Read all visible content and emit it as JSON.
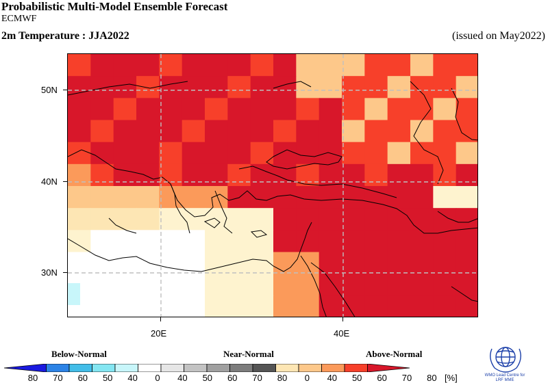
{
  "header": {
    "title": "Probabilistic Multi-Model Ensemble Forecast",
    "center": "ECMWF",
    "variable": "2m Temperature : JJA2022",
    "issued": "(issued on May2022)"
  },
  "map": {
    "lon_range": [
      10,
      55
    ],
    "lat_range": [
      25,
      55
    ],
    "lat_ticks": [
      {
        "value": 50,
        "label": "50N"
      },
      {
        "value": 40,
        "label": "40N"
      },
      {
        "value": 30,
        "label": "30N"
      }
    ],
    "lon_ticks": [
      {
        "value": 20,
        "label": "20E"
      },
      {
        "value": 40,
        "label": "40E"
      }
    ],
    "grid": true
  },
  "legend": {
    "categories": [
      "Below-Normal",
      "Near-Normal",
      "Above-Normal"
    ],
    "below_labels": [
      "80",
      "70",
      "60",
      "50",
      "40",
      "0"
    ],
    "near_labels": [
      "40",
      "50",
      "60",
      "70",
      "80",
      "0"
    ],
    "above_labels": [
      "40",
      "50",
      "60",
      "70",
      "80"
    ],
    "unit": "[%]",
    "below_colors": [
      "#1a1ae0",
      "#2c83e6",
      "#42bde8",
      "#84e6f2",
      "#c8f6fa"
    ],
    "near_colors": [
      "#e6e6e6",
      "#c3c3c3",
      "#a0a0a0",
      "#7d7d7d",
      "#555555"
    ],
    "above_colors": [
      "#fde6b4",
      "#fdc88a",
      "#fb9a5a",
      "#f7402a",
      "#d8172a"
    ]
  },
  "logo": {
    "line1": "WMO Lead Centre for",
    "line2": "LRF MME"
  }
}
